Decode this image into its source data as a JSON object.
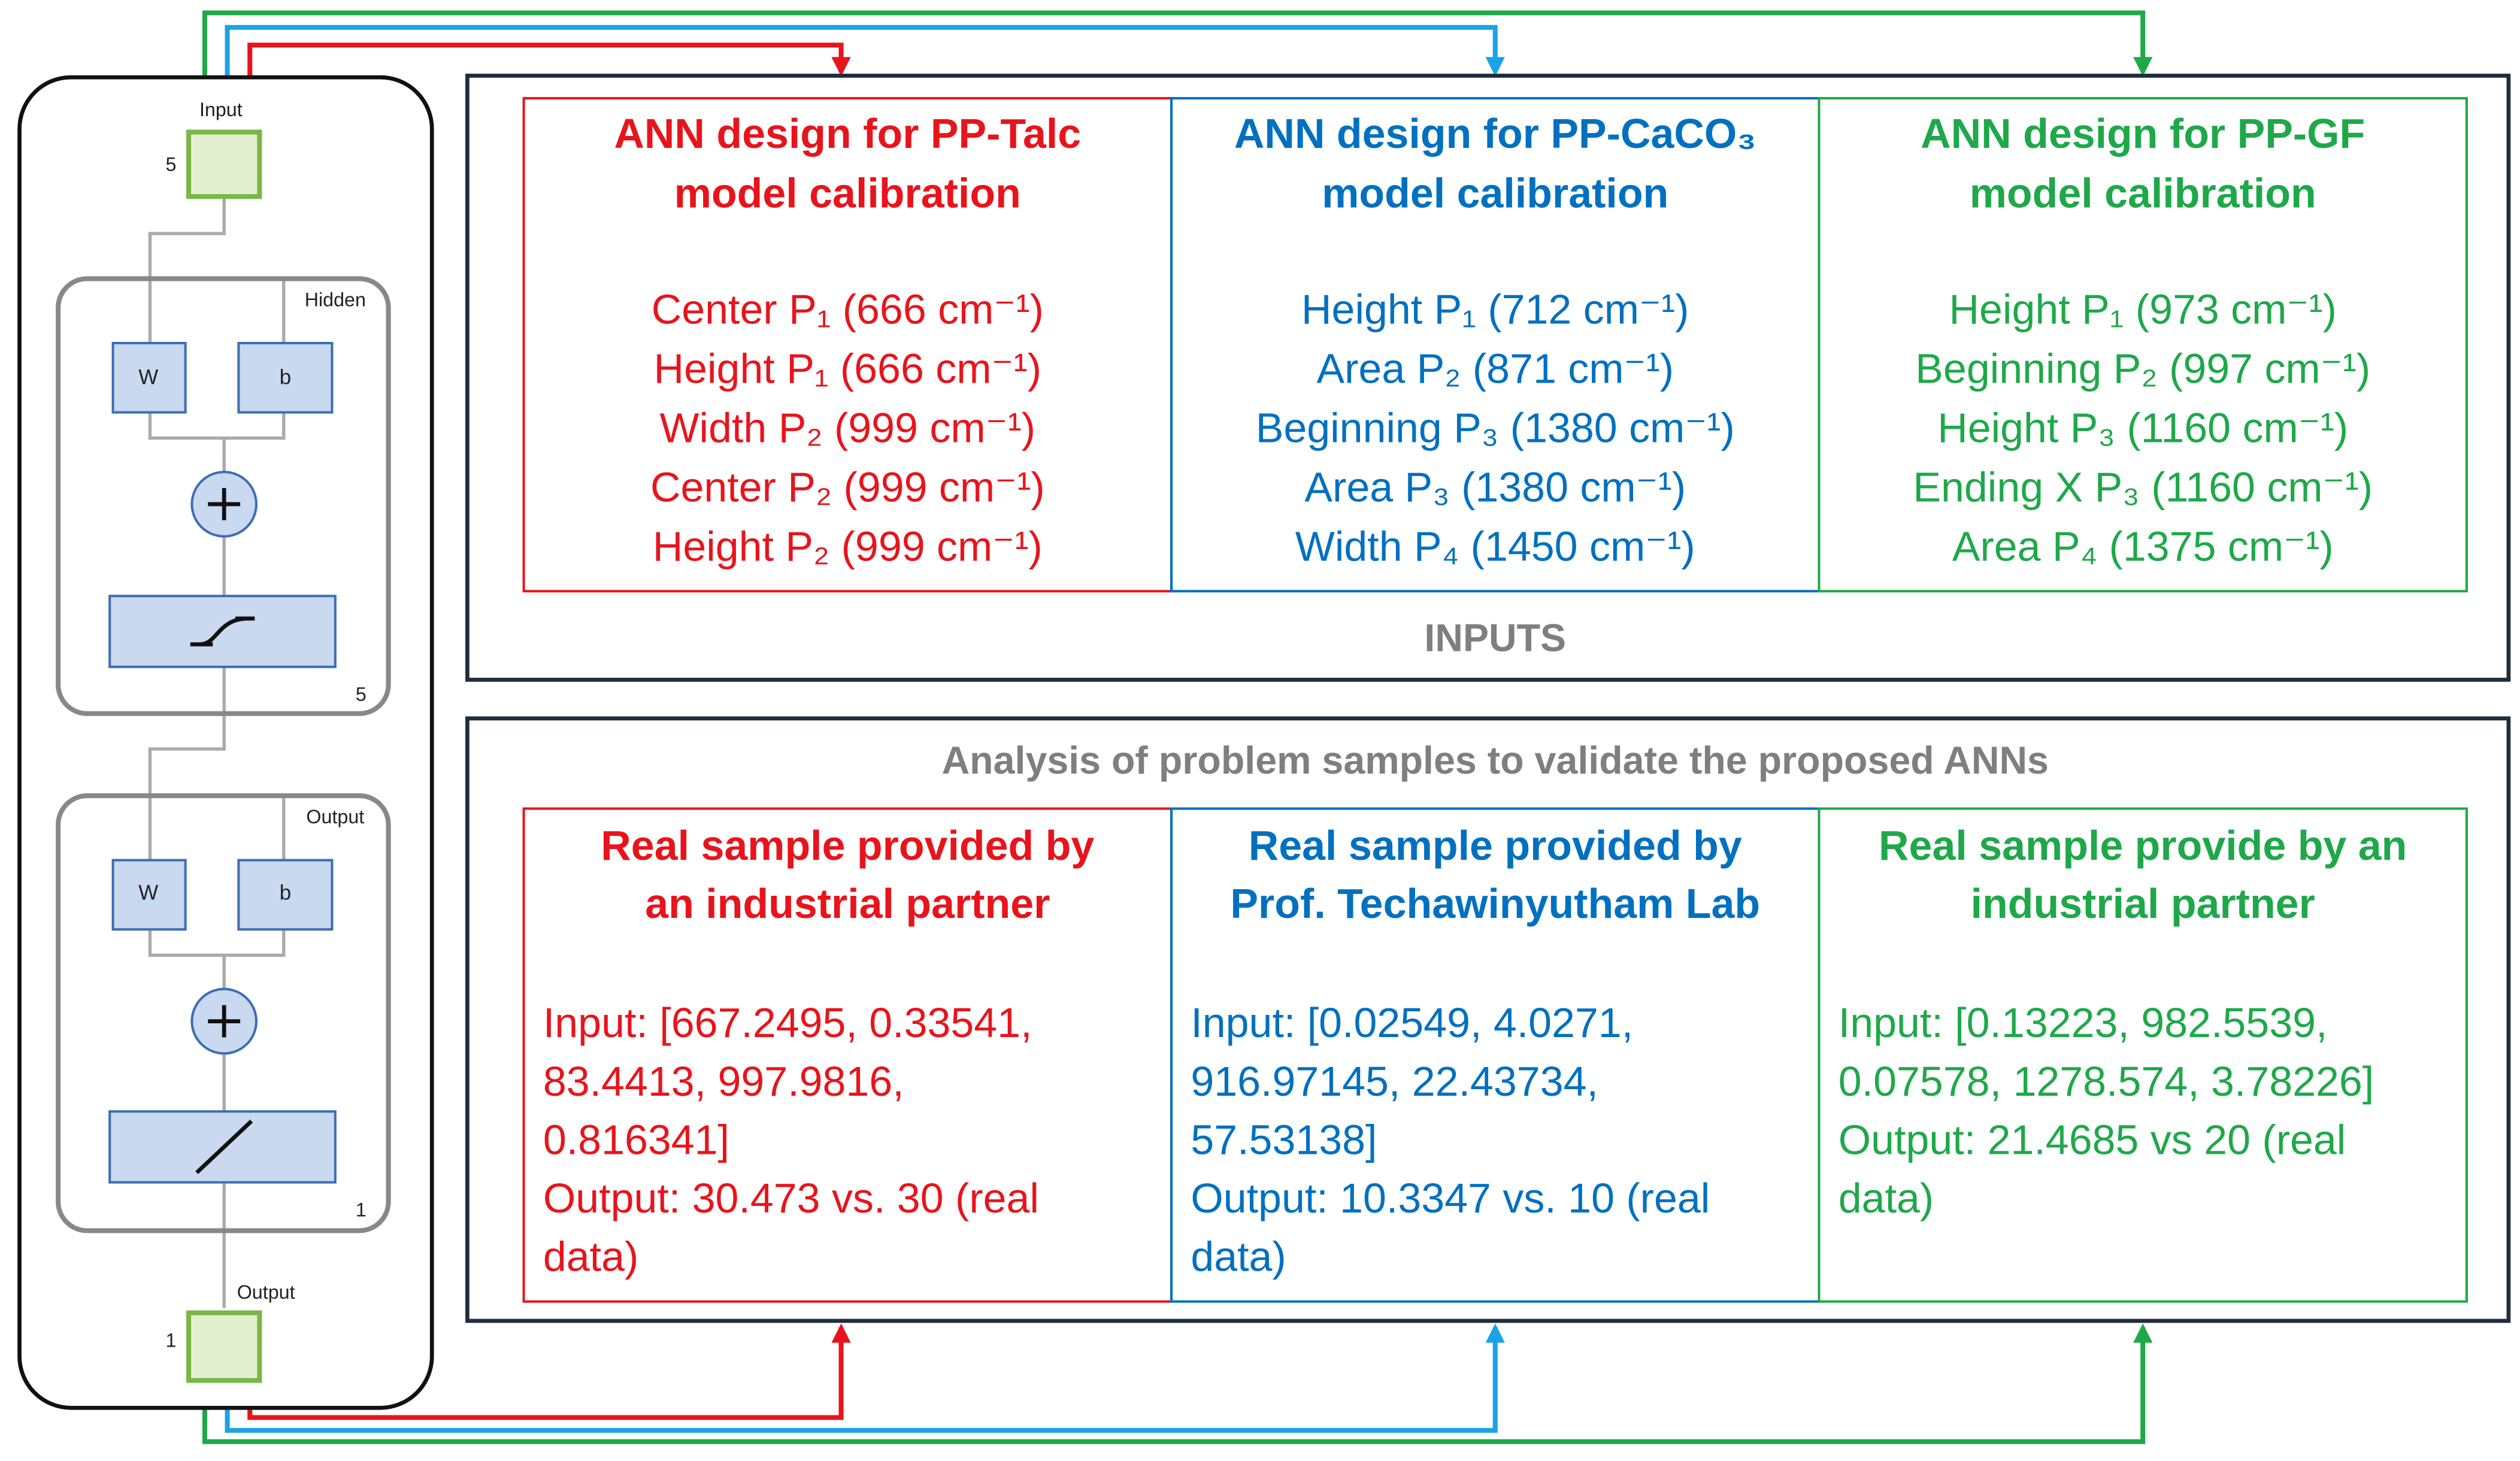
{
  "network": {
    "input_label": "Input",
    "input_size": "5",
    "hidden_label": "Hidden",
    "hidden_w": "W",
    "hidden_b": "b",
    "hidden_size": "5",
    "output_label": "Output",
    "output_w": "W",
    "output_b": "b",
    "output_size": "1",
    "final_label": "Output",
    "final_size": "1"
  },
  "inputs": {
    "label": "INPUTS",
    "columns": [
      {
        "title": [
          "ANN design for PP-Talc",
          "model calibration"
        ],
        "items": [
          "Center P₁ (666 cm⁻¹)",
          "Height P₁ (666 cm⁻¹)",
          "Width P₂ (999 cm⁻¹)",
          "Center P₂ (999 cm⁻¹)",
          "Height P₂ (999 cm⁻¹)"
        ]
      },
      {
        "title": [
          "ANN design for PP-CaCO₃",
          "model calibration"
        ],
        "items": [
          "Height P₁ (712 cm⁻¹)",
          "Area P₂ (871 cm⁻¹)",
          "Beginning P₃ (1380 cm⁻¹)",
          "Area P₃ (1380 cm⁻¹)",
          "Width P₄ (1450 cm⁻¹)"
        ]
      },
      {
        "title": [
          "ANN design for PP-GF",
          "model calibration"
        ],
        "items": [
          "Height  P₁ (973 cm⁻¹)",
          "Beginning  P₂ (997 cm⁻¹)",
          "Height  P₃ (1160 cm⁻¹)",
          "Ending X P₃ (1160 cm⁻¹)",
          "Area P₄ (1375 cm⁻¹)"
        ]
      }
    ]
  },
  "validation": {
    "title": "Analysis of problem samples to validate the proposed ANNs",
    "columns": [
      {
        "title": [
          "Real sample provided by",
          "an industrial partner"
        ],
        "lines": [
          "Input: [667.2495, 0.33541,",
          "83.4413, 997.9816,",
          "0.816341]",
          "Output: 30.473 vs. 30 (real",
          "data)"
        ]
      },
      {
        "title": [
          "Real sample provided by",
          "Prof. Techawinyutham Lab"
        ],
        "lines": [
          "Input: [0.02549, 4.0271,",
          "916.97145, 22.43734,",
          "57.53138]",
          "Output: 10.3347 vs. 10 (real",
          "data)"
        ]
      },
      {
        "title": [
          "Real sample provide by an",
          "industrial partner"
        ],
        "lines": [
          "Input: [0.13223, 982.5539,",
          "0.07578, 1278.574, 3.78226]",
          "Output: 21.4685 vs 20 (real",
          "data)"
        ]
      }
    ]
  }
}
